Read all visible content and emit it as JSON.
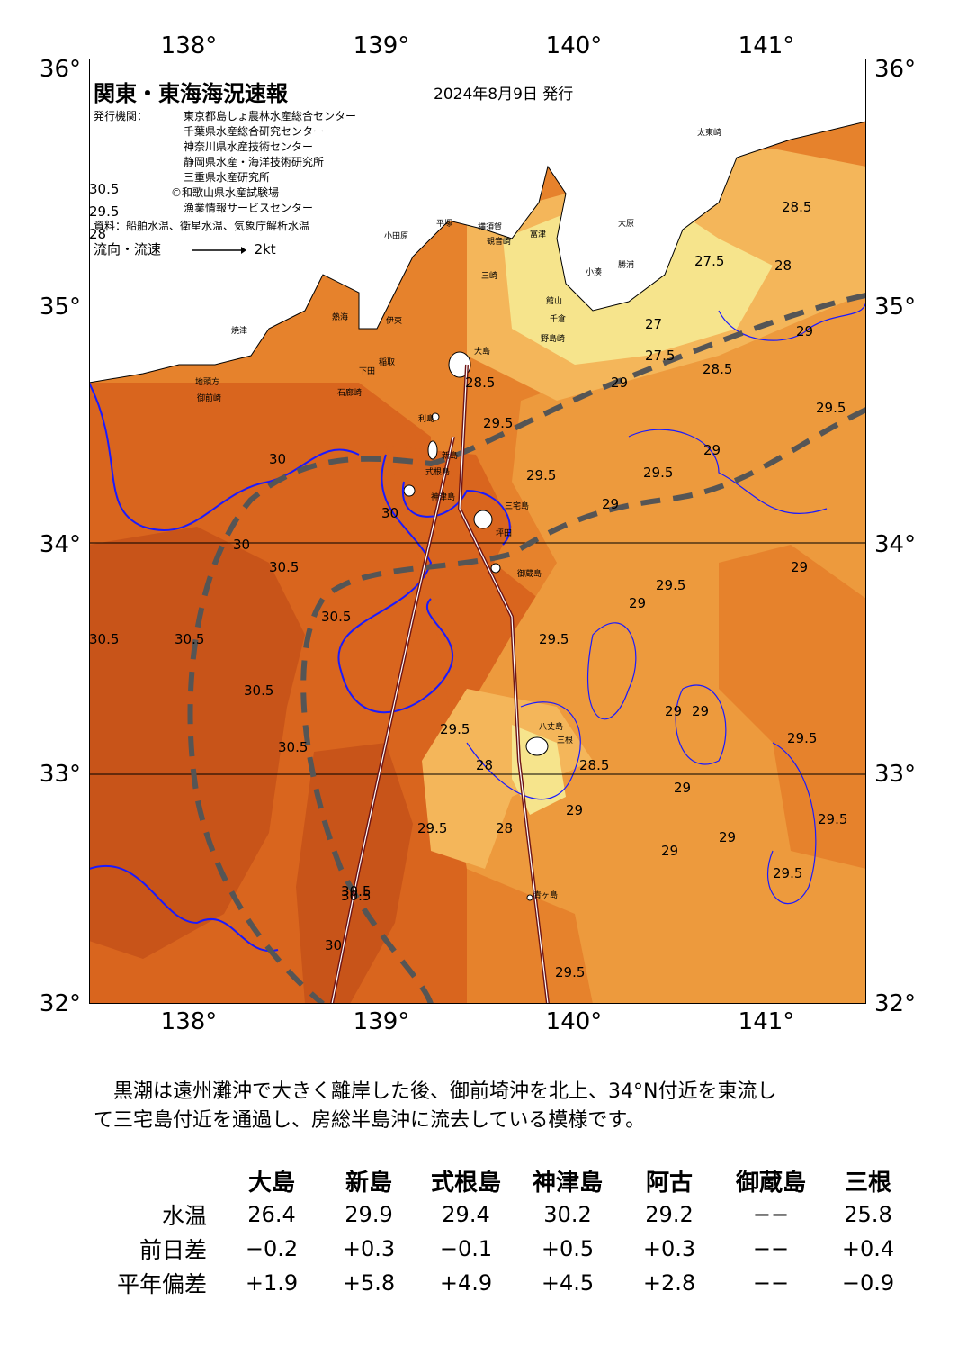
{
  "map": {
    "title": "関東・東海海況速報",
    "issued": "2024年8月9日 発行",
    "publisher_label": "発行機関：",
    "publishers": [
      "東京都島しょ農林水産総合センター",
      "千葉県水産総合研究センター",
      "神奈川県水産技術センター",
      "静岡県水産・海洋技術研究所",
      "三重県水産研究所",
      "©和歌山県水産試験場",
      "漁業情報サービスセンター"
    ],
    "source": "資料：船舶水温、衛星水温、気象庁解析水温",
    "legend_label": "流向・流速",
    "legend_scale": "2kt",
    "lon_labels": [
      "138°",
      "139°",
      "140°",
      "141°"
    ],
    "lat_labels": [
      "36°",
      "35°",
      "34°",
      "33°",
      "32°"
    ],
    "place_names": {
      "taiko": "太東崎",
      "ohara": "大原",
      "katsuura": "勝浦",
      "kozu_ura": "小湊",
      "chikura": "千倉",
      "nojima": "野島崎",
      "tateyama": "館山",
      "futtsu": "富津",
      "yokosuka": "横須賀",
      "kannonzaki": "観音崎",
      "misaki": "三崎",
      "odawara": "小田原",
      "hiratsuka": "平塚",
      "atami": "熱海",
      "ito": "伊東",
      "inatori": "稲取",
      "shimoda": "下田",
      "irozaki": "石廊崎",
      "yaizu": "焼津",
      "omaezaki": "御前崎",
      "chikyu": "地頭方",
      "oshima": "大島",
      "toshima": "利島",
      "niijima": "新島",
      "shikinejima": "式根島",
      "kozushima": "神津島",
      "miyakejima": "三宅島",
      "tsubota": "坪田",
      "mikurajima": "御蔵島",
      "hachijojima": "八丈島",
      "mitsune": "三根",
      "aogashima": "青ヶ島"
    },
    "isotherm_labels": [
      "27.5",
      "28.5",
      "28",
      "27",
      "27.5",
      "29",
      "28.5",
      "29",
      "28.5",
      "29.5",
      "29.5",
      "29",
      "29.5",
      "29.5",
      "29",
      "30",
      "30.5",
      "30",
      "30.5",
      "30.5",
      "30.5",
      "30.5",
      "30.5",
      "30.5",
      "29.5",
      "29",
      "29",
      "29.5",
      "29.5",
      "29",
      "29",
      "29",
      "29",
      "29.5",
      "28.5",
      "28",
      "28",
      "29",
      "29.5",
      "29.5",
      "29",
      "29.5",
      "30.5",
      "30",
      "30.5",
      "30",
      "29.5",
      "29.5",
      "28"
    ],
    "colors": {
      "temp_26": "#f6e48c",
      "temp_27": "#f3d475",
      "temp_28": "#f4b65a",
      "temp_29": "#ed9a3d",
      "temp_295": "#e6822c",
      "temp_30": "#d9651e",
      "temp_305": "#c85419",
      "land": "#ffffff",
      "isotherm": "#1a1aff",
      "kuroshio_axis": "#6e1414",
      "front_line": "#555555"
    }
  },
  "summary": [
    "　黒潮は遠州灘沖で大きく離岸した後、御前埼沖を北上、34°N付近を東流し",
    "て三宅島付近を通過し、房総半島沖に流去している模様です。"
  ],
  "table": {
    "columns": [
      "大島",
      "新島",
      "式根島",
      "神津島",
      "阿古",
      "御蔵島",
      "三根"
    ],
    "rows": [
      {
        "label": "水温",
        "values": [
          "26.4",
          "29.9",
          "29.4",
          "30.2",
          "29.2",
          "−−",
          "25.8"
        ]
      },
      {
        "label": "前日差",
        "values": [
          "−0.2",
          "+0.3",
          "−0.1",
          "+0.5",
          "+0.3",
          "−−",
          "+0.4"
        ]
      },
      {
        "label": "平年偏差",
        "values": [
          "+1.9",
          "+5.8",
          "+4.9",
          "+4.5",
          "+2.8",
          "−−",
          "−0.9"
        ]
      }
    ]
  }
}
